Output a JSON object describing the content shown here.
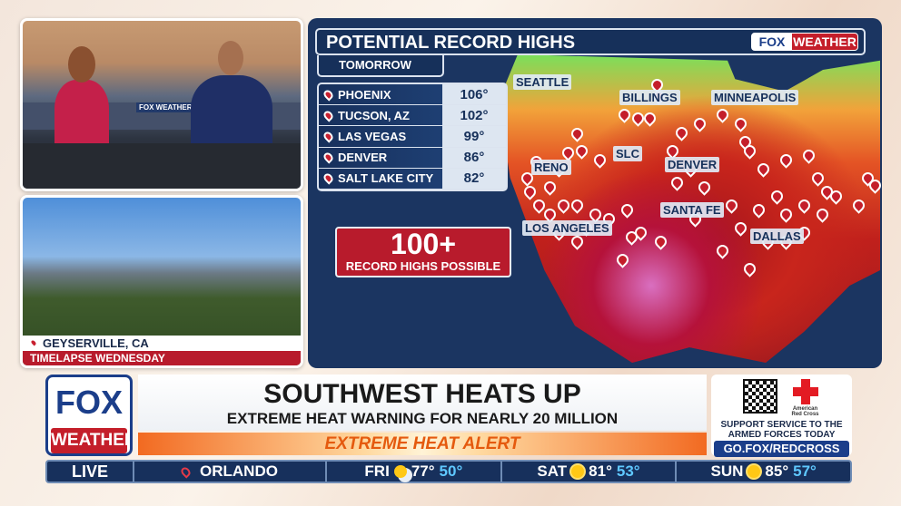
{
  "timelapse": {
    "location": "GEYSERVILLE, CA",
    "label": "TIMELAPSE WEDNESDAY"
  },
  "studio": {
    "set_logo": "FOX WEATHER"
  },
  "map": {
    "title": "POTENTIAL RECORD HIGHS",
    "brand": {
      "fox": "FOX",
      "weather": "WEATHER"
    },
    "subtitle": "TOMORROW",
    "table": [
      {
        "city": "PHOENIX",
        "temp": "106°"
      },
      {
        "city": "TUCSON, AZ",
        "temp": "102°"
      },
      {
        "city": "LAS VEGAS",
        "temp": "99°"
      },
      {
        "city": "DENVER",
        "temp": "86°"
      },
      {
        "city": "SALT LAKE CITY",
        "temp": "82°"
      }
    ],
    "callout": {
      "number": "100+",
      "text": "RECORD HIGHS POSSIBLE"
    },
    "city_labels": [
      "SEATTLE",
      "BILLINGS",
      "MINNEAPOLIS",
      "SLC",
      "RENO",
      "DENVER",
      "SANTA FE",
      "LOS ANGELES",
      "DALLAS"
    ],
    "pin_color": "#c41e2a"
  },
  "lower_third": {
    "logo": {
      "fox": "FOX",
      "weather": "WEATHER"
    },
    "headline": "SOUTHWEST HEATS UP",
    "subheadline": "EXTREME HEAT WARNING FOR NEARLY 20 MILLION",
    "alert": "EXTREME HEAT ALERT",
    "sponsor": {
      "org": "American Red Cross",
      "line1": "SUPPORT SERVICE TO THE",
      "line2": "ARMED FORCES TODAY",
      "url": "GO.FOX/REDCROSS"
    }
  },
  "ticker": {
    "live": "LIVE",
    "location": "ORLANDO",
    "forecast": [
      {
        "day": "FRI",
        "icon": "partly-sunny",
        "high": "77°",
        "low": "50°"
      },
      {
        "day": "SAT",
        "icon": "sunny",
        "high": "81°",
        "low": "53°"
      },
      {
        "day": "SUN",
        "icon": "sunny",
        "high": "85°",
        "low": "57°"
      }
    ]
  }
}
